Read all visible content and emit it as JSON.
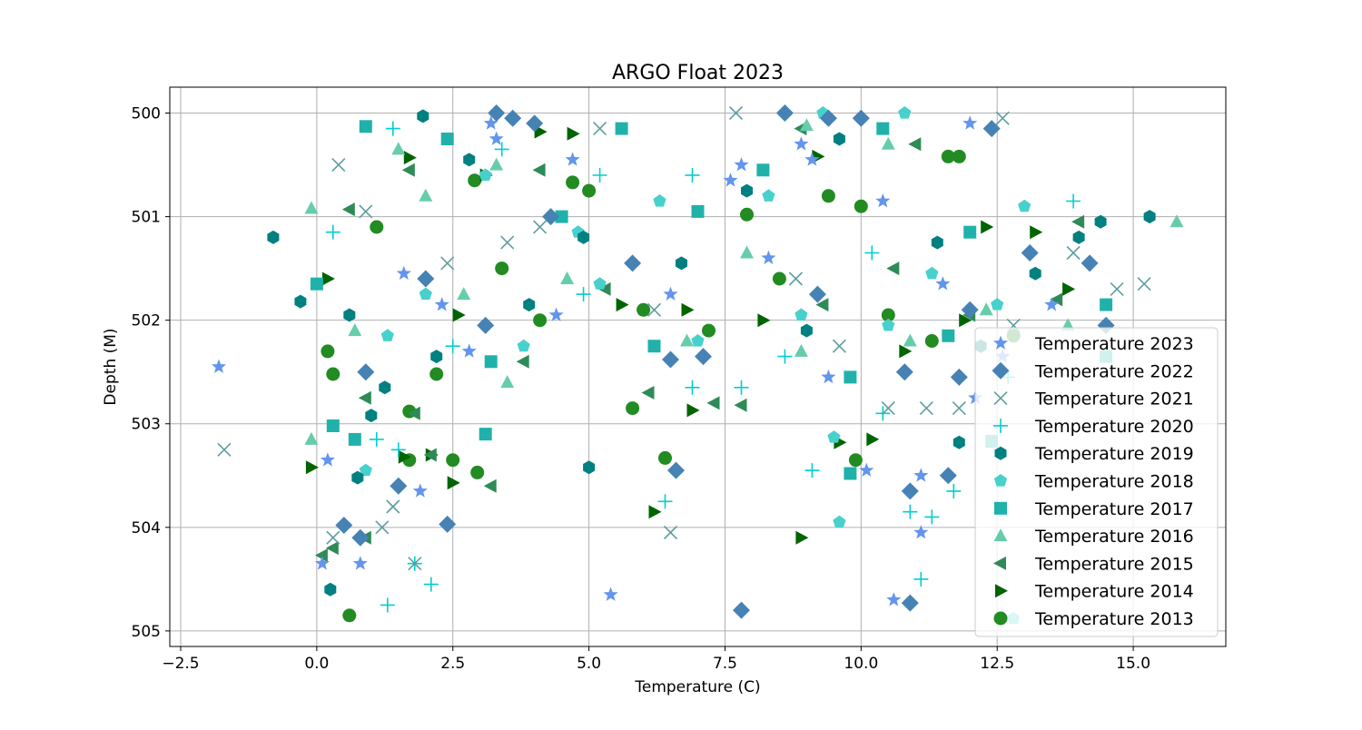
{
  "chart_data": {
    "type": "scatter",
    "title": "ARGO Float 2023",
    "xlabel": "Temperature (C)",
    "ylabel": "Depth (M)",
    "xlim": [
      -2.7,
      16.7
    ],
    "ylim": [
      505.15,
      499.75
    ],
    "y_inverted": true,
    "grid": true,
    "legend_position": "lower-right",
    "x_ticks": [
      "−2.5",
      "0.0",
      "2.5",
      "5.0",
      "7.5",
      "10.0",
      "12.5",
      "15.0"
    ],
    "x_tick_values": [
      -2.5,
      0,
      2.5,
      5,
      7.5,
      10,
      12.5,
      15
    ],
    "y_ticks": [
      "500",
      "501",
      "502",
      "503",
      "504",
      "505"
    ],
    "y_tick_values": [
      500,
      501,
      502,
      503,
      504,
      505
    ],
    "series": [
      {
        "name": "Temperature 2023",
        "marker": "star",
        "color": "#6495ed",
        "points": [
          [
            -1.8,
            502.45
          ],
          [
            0.1,
            504.35
          ],
          [
            0.2,
            503.35
          ],
          [
            0.8,
            504.35
          ],
          [
            1.9,
            503.65
          ],
          [
            3.2,
            500.1
          ],
          [
            3.3,
            500.25
          ],
          [
            4.7,
            500.45
          ],
          [
            5.4,
            504.65
          ],
          [
            7.6,
            500.65
          ],
          [
            7.8,
            500.5
          ],
          [
            8.9,
            500.3
          ],
          [
            9.1,
            500.45
          ],
          [
            10.1,
            503.45
          ],
          [
            10.6,
            504.7
          ],
          [
            11.1,
            503.5
          ],
          [
            11.1,
            504.05
          ],
          [
            12.0,
            500.1
          ],
          [
            12.1,
            502.75
          ],
          [
            1.6,
            501.55
          ],
          [
            2.3,
            501.85
          ],
          [
            4.4,
            501.95
          ],
          [
            6.5,
            501.75
          ],
          [
            9.4,
            502.55
          ],
          [
            11.5,
            501.65
          ],
          [
            13.5,
            501.85
          ],
          [
            2.8,
            502.3
          ],
          [
            8.3,
            501.4
          ],
          [
            10.4,
            500.85
          ],
          [
            12.6,
            502.35
          ]
        ]
      },
      {
        "name": "Temperature 2022",
        "marker": "diamond",
        "color": "#4682b4",
        "points": [
          [
            0.5,
            503.98
          ],
          [
            0.8,
            504.1
          ],
          [
            1.5,
            503.6
          ],
          [
            2.4,
            503.97
          ],
          [
            3.3,
            500.0
          ],
          [
            3.6,
            500.05
          ],
          [
            4.0,
            500.1
          ],
          [
            6.6,
            503.45
          ],
          [
            7.8,
            504.8
          ],
          [
            8.6,
            500.0
          ],
          [
            9.4,
            500.05
          ],
          [
            10.0,
            500.05
          ],
          [
            10.9,
            503.65
          ],
          [
            10.9,
            504.73
          ],
          [
            11.6,
            503.5
          ],
          [
            12.4,
            500.15
          ],
          [
            14.2,
            501.45
          ],
          [
            14.5,
            502.05
          ],
          [
            0.9,
            502.5
          ],
          [
            3.1,
            502.05
          ],
          [
            5.8,
            501.45
          ],
          [
            7.1,
            502.35
          ],
          [
            10.8,
            502.5
          ],
          [
            11.8,
            502.55
          ],
          [
            6.5,
            502.38
          ],
          [
            13.1,
            501.35
          ],
          [
            2.0,
            501.6
          ],
          [
            9.2,
            501.75
          ],
          [
            4.3,
            501.0
          ],
          [
            12.0,
            501.9
          ]
        ]
      },
      {
        "name": "Temperature 2021",
        "marker": "x",
        "color": "#5f9ea0",
        "points": [
          [
            -1.7,
            503.25
          ],
          [
            0.4,
            500.5
          ],
          [
            0.3,
            504.1
          ],
          [
            1.4,
            503.8
          ],
          [
            1.2,
            504.0
          ],
          [
            1.8,
            504.35
          ],
          [
            5.2,
            500.15
          ],
          [
            6.5,
            504.05
          ],
          [
            7.7,
            500.0
          ],
          [
            10.5,
            502.85
          ],
          [
            11.2,
            502.85
          ],
          [
            11.8,
            502.85
          ],
          [
            12.6,
            500.05
          ],
          [
            14.7,
            501.7
          ],
          [
            15.2,
            501.65
          ],
          [
            0.9,
            500.95
          ],
          [
            3.5,
            501.25
          ],
          [
            6.2,
            501.9
          ],
          [
            8.8,
            501.6
          ],
          [
            12.8,
            502.05
          ],
          [
            2.4,
            501.45
          ],
          [
            9.6,
            502.25
          ],
          [
            4.1,
            501.1
          ],
          [
            13.9,
            501.35
          ]
        ]
      },
      {
        "name": "Temperature 2020",
        "marker": "plus",
        "color": "#00ced1",
        "points": [
          [
            1.3,
            504.75
          ],
          [
            1.8,
            504.35
          ],
          [
            2.1,
            504.55
          ],
          [
            1.1,
            503.15
          ],
          [
            1.5,
            503.25
          ],
          [
            6.4,
            503.75
          ],
          [
            6.9,
            500.6
          ],
          [
            6.9,
            502.65
          ],
          [
            7.8,
            502.65
          ],
          [
            9.1,
            503.45
          ],
          [
            10.4,
            502.9
          ],
          [
            10.9,
            503.85
          ],
          [
            11.1,
            504.5
          ],
          [
            11.3,
            503.9
          ],
          [
            11.7,
            503.65
          ],
          [
            13.9,
            500.85
          ],
          [
            1.4,
            500.15
          ],
          [
            3.4,
            500.35
          ],
          [
            5.2,
            500.6
          ],
          [
            0.3,
            501.15
          ],
          [
            2.5,
            502.25
          ],
          [
            8.6,
            502.35
          ],
          [
            12.7,
            502.55
          ],
          [
            4.9,
            501.75
          ],
          [
            10.2,
            501.35
          ]
        ]
      },
      {
        "name": "Temperature 2019",
        "marker": "hexagon",
        "color": "#008080",
        "points": [
          [
            -0.8,
            501.2
          ],
          [
            -0.3,
            501.82
          ],
          [
            0.25,
            504.6
          ],
          [
            0.75,
            503.52
          ],
          [
            1.0,
            502.92
          ],
          [
            1.25,
            502.65
          ],
          [
            1.95,
            500.03
          ],
          [
            5.0,
            503.42
          ],
          [
            11.8,
            503.18
          ],
          [
            15.3,
            501.0
          ],
          [
            14.0,
            501.2
          ],
          [
            14.4,
            501.05
          ],
          [
            2.8,
            500.45
          ],
          [
            4.9,
            501.2
          ],
          [
            7.9,
            500.75
          ],
          [
            9.6,
            500.25
          ],
          [
            13.2,
            501.55
          ],
          [
            0.6,
            501.95
          ],
          [
            3.9,
            501.85
          ],
          [
            6.7,
            501.45
          ],
          [
            9.0,
            502.1
          ],
          [
            11.4,
            501.25
          ],
          [
            2.2,
            502.35
          ],
          [
            12.2,
            502.25
          ]
        ]
      },
      {
        "name": "Temperature 2018",
        "marker": "pentagon",
        "color": "#48d1cc",
        "points": [
          [
            0.9,
            503.45
          ],
          [
            9.6,
            503.95
          ],
          [
            9.5,
            503.13
          ],
          [
            9.3,
            500.0
          ],
          [
            10.8,
            500.0
          ],
          [
            12.8,
            504.88
          ],
          [
            3.1,
            500.6
          ],
          [
            4.8,
            501.15
          ],
          [
            6.3,
            500.85
          ],
          [
            8.3,
            500.8
          ],
          [
            13.0,
            500.9
          ],
          [
            2.0,
            501.75
          ],
          [
            5.2,
            501.65
          ],
          [
            7.0,
            502.2
          ],
          [
            10.5,
            502.05
          ],
          [
            12.5,
            501.85
          ],
          [
            1.3,
            502.15
          ],
          [
            3.8,
            502.25
          ],
          [
            8.9,
            501.95
          ],
          [
            11.3,
            501.55
          ]
        ]
      },
      {
        "name": "Temperature 2017",
        "marker": "square",
        "color": "#20b2aa",
        "points": [
          [
            0.3,
            503.02
          ],
          [
            0.7,
            503.15
          ],
          [
            0.9,
            500.13
          ],
          [
            3.1,
            503.1
          ],
          [
            5.6,
            500.15
          ],
          [
            9.8,
            502.55
          ],
          [
            9.8,
            503.48
          ],
          [
            12.4,
            503.17
          ],
          [
            14.5,
            501.85
          ],
          [
            14.5,
            502.35
          ],
          [
            2.4,
            500.25
          ],
          [
            8.2,
            500.55
          ],
          [
            10.4,
            500.15
          ],
          [
            12.0,
            501.15
          ],
          [
            3.2,
            502.4
          ],
          [
            6.2,
            502.25
          ],
          [
            0.0,
            501.65
          ],
          [
            4.5,
            501.0
          ],
          [
            7.0,
            500.95
          ],
          [
            11.6,
            502.15
          ]
        ]
      },
      {
        "name": "Temperature 2016",
        "marker": "triangle-up",
        "color": "#66cdaa",
        "points": [
          [
            -0.1,
            503.15
          ],
          [
            -0.1,
            500.92
          ],
          [
            3.5,
            502.6
          ],
          [
            15.8,
            501.05
          ],
          [
            9.0,
            500.12
          ],
          [
            10.5,
            500.3
          ],
          [
            1.5,
            500.35
          ],
          [
            2.0,
            500.8
          ],
          [
            3.3,
            500.5
          ],
          [
            6.8,
            502.2
          ],
          [
            8.9,
            502.3
          ],
          [
            12.3,
            501.9
          ],
          [
            0.7,
            502.1
          ],
          [
            4.6,
            501.6
          ],
          [
            10.9,
            502.2
          ],
          [
            13.8,
            502.05
          ],
          [
            2.7,
            501.75
          ],
          [
            7.9,
            501.35
          ]
        ]
      },
      {
        "name": "Temperature 2015",
        "marker": "triangle-left",
        "color": "#2e8b57",
        "points": [
          [
            0.1,
            504.27
          ],
          [
            0.3,
            504.2
          ],
          [
            0.9,
            504.1
          ],
          [
            0.9,
            502.75
          ],
          [
            1.8,
            502.9
          ],
          [
            2.1,
            503.3
          ],
          [
            3.2,
            503.6
          ],
          [
            6.1,
            502.7
          ],
          [
            7.3,
            502.8
          ],
          [
            7.8,
            502.82
          ],
          [
            0.6,
            500.93
          ],
          [
            1.7,
            500.55
          ],
          [
            4.1,
            500.55
          ],
          [
            8.9,
            500.15
          ],
          [
            11.0,
            500.3
          ],
          [
            13.6,
            501.8
          ],
          [
            14.0,
            501.05
          ],
          [
            3.8,
            502.4
          ],
          [
            9.3,
            501.85
          ],
          [
            12.0,
            501.95
          ],
          [
            5.3,
            501.7
          ],
          [
            10.6,
            501.5
          ]
        ]
      },
      {
        "name": "Temperature 2014",
        "marker": "triangle-right",
        "color": "#006400",
        "points": [
          [
            -0.1,
            503.42
          ],
          [
            1.6,
            503.32
          ],
          [
            2.1,
            503.3
          ],
          [
            2.5,
            503.57
          ],
          [
            6.2,
            503.85
          ],
          [
            6.9,
            502.87
          ],
          [
            8.9,
            504.1
          ],
          [
            9.6,
            503.18
          ],
          [
            10.2,
            503.15
          ],
          [
            4.1,
            500.18
          ],
          [
            4.7,
            500.2
          ],
          [
            9.2,
            500.42
          ],
          [
            12.3,
            501.1
          ],
          [
            13.2,
            501.15
          ],
          [
            1.7,
            500.43
          ],
          [
            3.1,
            500.6
          ],
          [
            6.8,
            501.9
          ],
          [
            10.8,
            502.3
          ],
          [
            13.8,
            501.7
          ],
          [
            0.2,
            501.6
          ],
          [
            5.6,
            501.85
          ],
          [
            8.2,
            502.0
          ],
          [
            11.9,
            502.0
          ],
          [
            2.6,
            501.95
          ]
        ]
      },
      {
        "name": "Temperature 2013",
        "marker": "circle",
        "color": "#228b22",
        "points": [
          [
            0.6,
            504.85
          ],
          [
            0.3,
            502.52
          ],
          [
            1.7,
            502.88
          ],
          [
            1.7,
            503.35
          ],
          [
            2.2,
            502.52
          ],
          [
            2.5,
            503.35
          ],
          [
            2.95,
            503.47
          ],
          [
            5.8,
            502.85
          ],
          [
            6.4,
            503.33
          ],
          [
            9.9,
            503.35
          ],
          [
            4.7,
            500.67
          ],
          [
            5.0,
            500.75
          ],
          [
            7.9,
            500.98
          ],
          [
            11.6,
            500.42
          ],
          [
            11.8,
            500.42
          ],
          [
            9.4,
            500.8
          ],
          [
            10.0,
            500.9
          ],
          [
            1.1,
            501.1
          ],
          [
            3.4,
            501.5
          ],
          [
            6.0,
            501.9
          ],
          [
            8.5,
            501.6
          ],
          [
            10.5,
            501.95
          ],
          [
            12.8,
            502.15
          ],
          [
            0.2,
            502.3
          ],
          [
            2.9,
            500.65
          ],
          [
            7.2,
            502.1
          ],
          [
            11.3,
            502.2
          ],
          [
            4.1,
            502.0
          ]
        ]
      }
    ]
  }
}
